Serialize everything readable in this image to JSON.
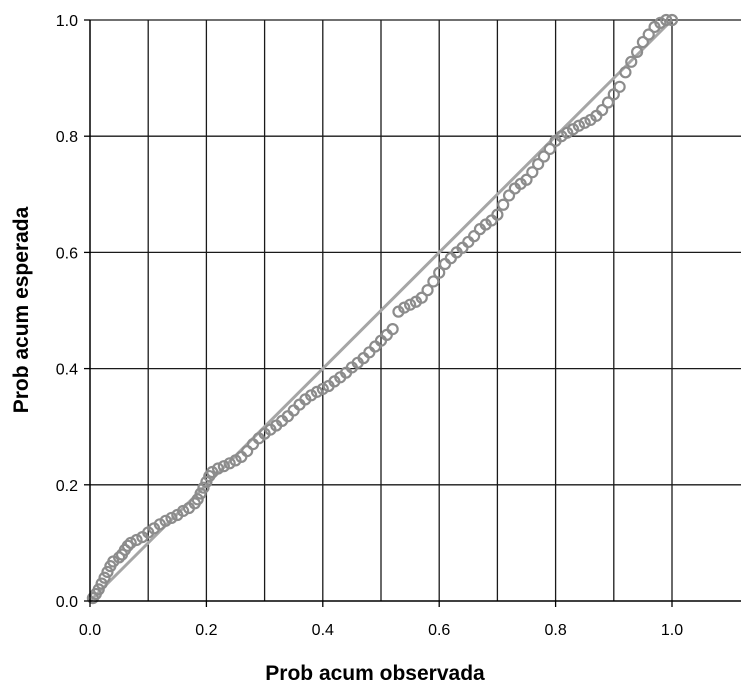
{
  "chart_data": {
    "type": "scatter",
    "title": "",
    "xlabel": "Prob acum observada",
    "ylabel": "Prob acum esperada",
    "xlim": [
      0,
      1.12
    ],
    "ylim": [
      0,
      1.0
    ],
    "x_ticks": [
      "0.0",
      "0.2",
      "0.4",
      "0.6",
      "0.8",
      "1.0"
    ],
    "y_ticks": [
      "0.0",
      "0.2",
      "0.4",
      "0.6",
      "0.8",
      "1.0"
    ],
    "grid": true,
    "grid_step_x": 0.1,
    "grid_step_y": 0.2,
    "reference_line": {
      "x": [
        0,
        1
      ],
      "y": [
        0,
        1
      ]
    },
    "colors": {
      "points": "#8c8c8c",
      "reference_line": "#a6a6a6",
      "grid": "#1a1a1a"
    },
    "series": [
      {
        "points": [
          [
            0.005,
            0.005
          ],
          [
            0.01,
            0.012
          ],
          [
            0.015,
            0.02
          ],
          [
            0.02,
            0.03
          ],
          [
            0.025,
            0.04
          ],
          [
            0.03,
            0.05
          ],
          [
            0.035,
            0.06
          ],
          [
            0.04,
            0.068
          ],
          [
            0.05,
            0.075
          ],
          [
            0.055,
            0.08
          ],
          [
            0.06,
            0.088
          ],
          [
            0.065,
            0.095
          ],
          [
            0.07,
            0.1
          ],
          [
            0.08,
            0.105
          ],
          [
            0.09,
            0.11
          ],
          [
            0.1,
            0.118
          ],
          [
            0.11,
            0.125
          ],
          [
            0.12,
            0.132
          ],
          [
            0.13,
            0.138
          ],
          [
            0.14,
            0.143
          ],
          [
            0.15,
            0.148
          ],
          [
            0.16,
            0.155
          ],
          [
            0.17,
            0.16
          ],
          [
            0.18,
            0.168
          ],
          [
            0.185,
            0.175
          ],
          [
            0.19,
            0.185
          ],
          [
            0.195,
            0.195
          ],
          [
            0.2,
            0.205
          ],
          [
            0.205,
            0.215
          ],
          [
            0.21,
            0.222
          ],
          [
            0.22,
            0.228
          ],
          [
            0.23,
            0.232
          ],
          [
            0.24,
            0.237
          ],
          [
            0.25,
            0.242
          ],
          [
            0.26,
            0.248
          ],
          [
            0.27,
            0.258
          ],
          [
            0.28,
            0.27
          ],
          [
            0.29,
            0.28
          ],
          [
            0.3,
            0.288
          ],
          [
            0.31,
            0.295
          ],
          [
            0.32,
            0.302
          ],
          [
            0.33,
            0.31
          ],
          [
            0.34,
            0.318
          ],
          [
            0.35,
            0.328
          ],
          [
            0.36,
            0.338
          ],
          [
            0.37,
            0.347
          ],
          [
            0.38,
            0.354
          ],
          [
            0.39,
            0.36
          ],
          [
            0.4,
            0.365
          ],
          [
            0.41,
            0.37
          ],
          [
            0.42,
            0.378
          ],
          [
            0.43,
            0.385
          ],
          [
            0.44,
            0.393
          ],
          [
            0.45,
            0.402
          ],
          [
            0.46,
            0.41
          ],
          [
            0.47,
            0.418
          ],
          [
            0.48,
            0.428
          ],
          [
            0.49,
            0.438
          ],
          [
            0.5,
            0.448
          ],
          [
            0.51,
            0.458
          ],
          [
            0.52,
            0.468
          ],
          [
            0.53,
            0.498
          ],
          [
            0.54,
            0.505
          ],
          [
            0.55,
            0.51
          ],
          [
            0.56,
            0.515
          ],
          [
            0.57,
            0.522
          ],
          [
            0.58,
            0.535
          ],
          [
            0.59,
            0.55
          ],
          [
            0.6,
            0.565
          ],
          [
            0.61,
            0.58
          ],
          [
            0.62,
            0.59
          ],
          [
            0.63,
            0.6
          ],
          [
            0.64,
            0.608
          ],
          [
            0.65,
            0.618
          ],
          [
            0.66,
            0.628
          ],
          [
            0.67,
            0.64
          ],
          [
            0.68,
            0.648
          ],
          [
            0.69,
            0.655
          ],
          [
            0.7,
            0.665
          ],
          [
            0.71,
            0.682
          ],
          [
            0.72,
            0.698
          ],
          [
            0.73,
            0.71
          ],
          [
            0.74,
            0.718
          ],
          [
            0.75,
            0.725
          ],
          [
            0.76,
            0.738
          ],
          [
            0.77,
            0.752
          ],
          [
            0.78,
            0.765
          ],
          [
            0.79,
            0.778
          ],
          [
            0.8,
            0.792
          ],
          [
            0.81,
            0.8
          ],
          [
            0.82,
            0.806
          ],
          [
            0.83,
            0.812
          ],
          [
            0.84,
            0.818
          ],
          [
            0.85,
            0.823
          ],
          [
            0.86,
            0.828
          ],
          [
            0.87,
            0.835
          ],
          [
            0.88,
            0.845
          ],
          [
            0.89,
            0.858
          ],
          [
            0.9,
            0.872
          ],
          [
            0.91,
            0.885
          ],
          [
            0.92,
            0.91
          ],
          [
            0.93,
            0.928
          ],
          [
            0.94,
            0.945
          ],
          [
            0.95,
            0.962
          ],
          [
            0.96,
            0.975
          ],
          [
            0.97,
            0.988
          ],
          [
            0.98,
            0.995
          ],
          [
            0.99,
            1.0
          ],
          [
            1.0,
            1.0
          ]
        ]
      }
    ]
  }
}
